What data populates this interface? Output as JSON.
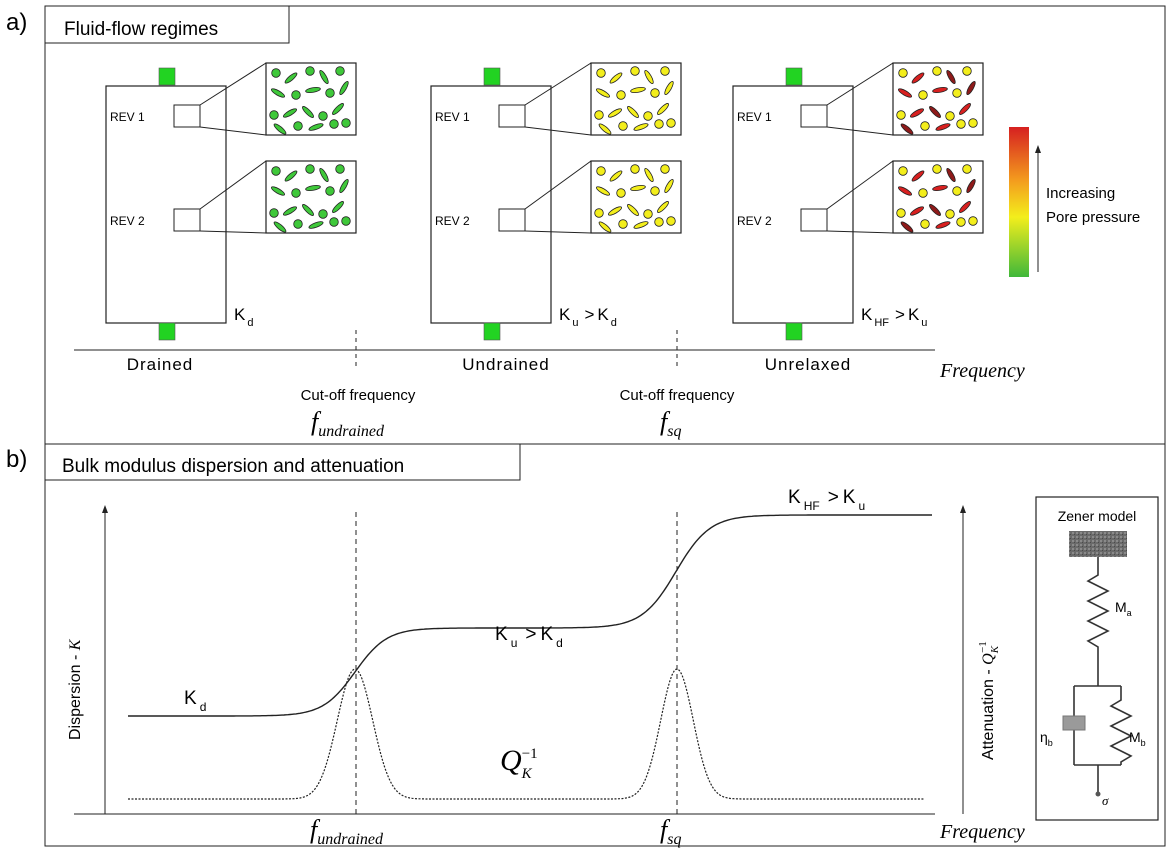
{
  "panel_a": {
    "tag": "a)",
    "title": "Fluid-flow regimes",
    "rev1": "REV 1",
    "rev2": "REV 2",
    "regimes": [
      {
        "name": "Drained",
        "fill": "#3fc83a",
        "modulus": "K",
        "modulus_sub": "d",
        "relation": "",
        "ref": "",
        "ref_sub": ""
      },
      {
        "name": "Undrained",
        "fill": "#f3ee1c",
        "modulus": "K",
        "modulus_sub": "u",
        "relation": ">",
        "ref": "K",
        "ref_sub": "d"
      },
      {
        "name": "Unrelaxed",
        "fill": "#f3ee1c",
        "modulus": "K",
        "modulus_sub": "HF",
        "relation": ">",
        "ref": "K",
        "ref_sub": "u"
      }
    ],
    "cutoffs": [
      {
        "label": "Cut-off frequency",
        "symbol": "f",
        "symbol_sub": "undrained"
      },
      {
        "label": "Cut-off frequency",
        "symbol": "f",
        "symbol_sub": "sq"
      }
    ],
    "xaxis": "Frequency",
    "legend": {
      "line1": "Increasing",
      "line2": "Pore pressure",
      "colors": [
        "#d62020",
        "#f39a1e",
        "#f3ee1c",
        "#3fb83a"
      ]
    },
    "inlet_color": "#22d322"
  },
  "panel_b": {
    "tag": "b)",
    "title": "Bulk modulus dispersion and attenuation",
    "ylabel_left": "Dispersion - ",
    "ylabel_left_sym": "K",
    "ylabel_right": "Attenuation - ",
    "ylabel_right_sym": "Q",
    "ylabel_right_sub": "K",
    "ylabel_right_sup": "−1",
    "curve_labels": [
      {
        "main": "K",
        "sub": "d",
        "relation": "",
        "ref": "",
        "ref_sub": ""
      },
      {
        "main": "K",
        "sub": "u",
        "relation": ">",
        "ref": "K",
        "ref_sub": "d"
      },
      {
        "main": "K",
        "sub": "HF",
        "relation": ">",
        "ref": "K",
        "ref_sub": "u"
      }
    ],
    "q_label": {
      "main": "Q",
      "sub": "K",
      "sup": "−1"
    },
    "x_ticks": [
      {
        "symbol": "f",
        "sub": "undrained"
      },
      {
        "symbol": "f",
        "sub": "sq"
      }
    ],
    "xaxis": "Frequency",
    "zener": {
      "title": "Zener model",
      "Ma": "M",
      "Ma_sub": "a",
      "Mb": "M",
      "Mb_sub": "b",
      "eta": "η",
      "eta_sub": "b",
      "sigma": "σ"
    }
  }
}
